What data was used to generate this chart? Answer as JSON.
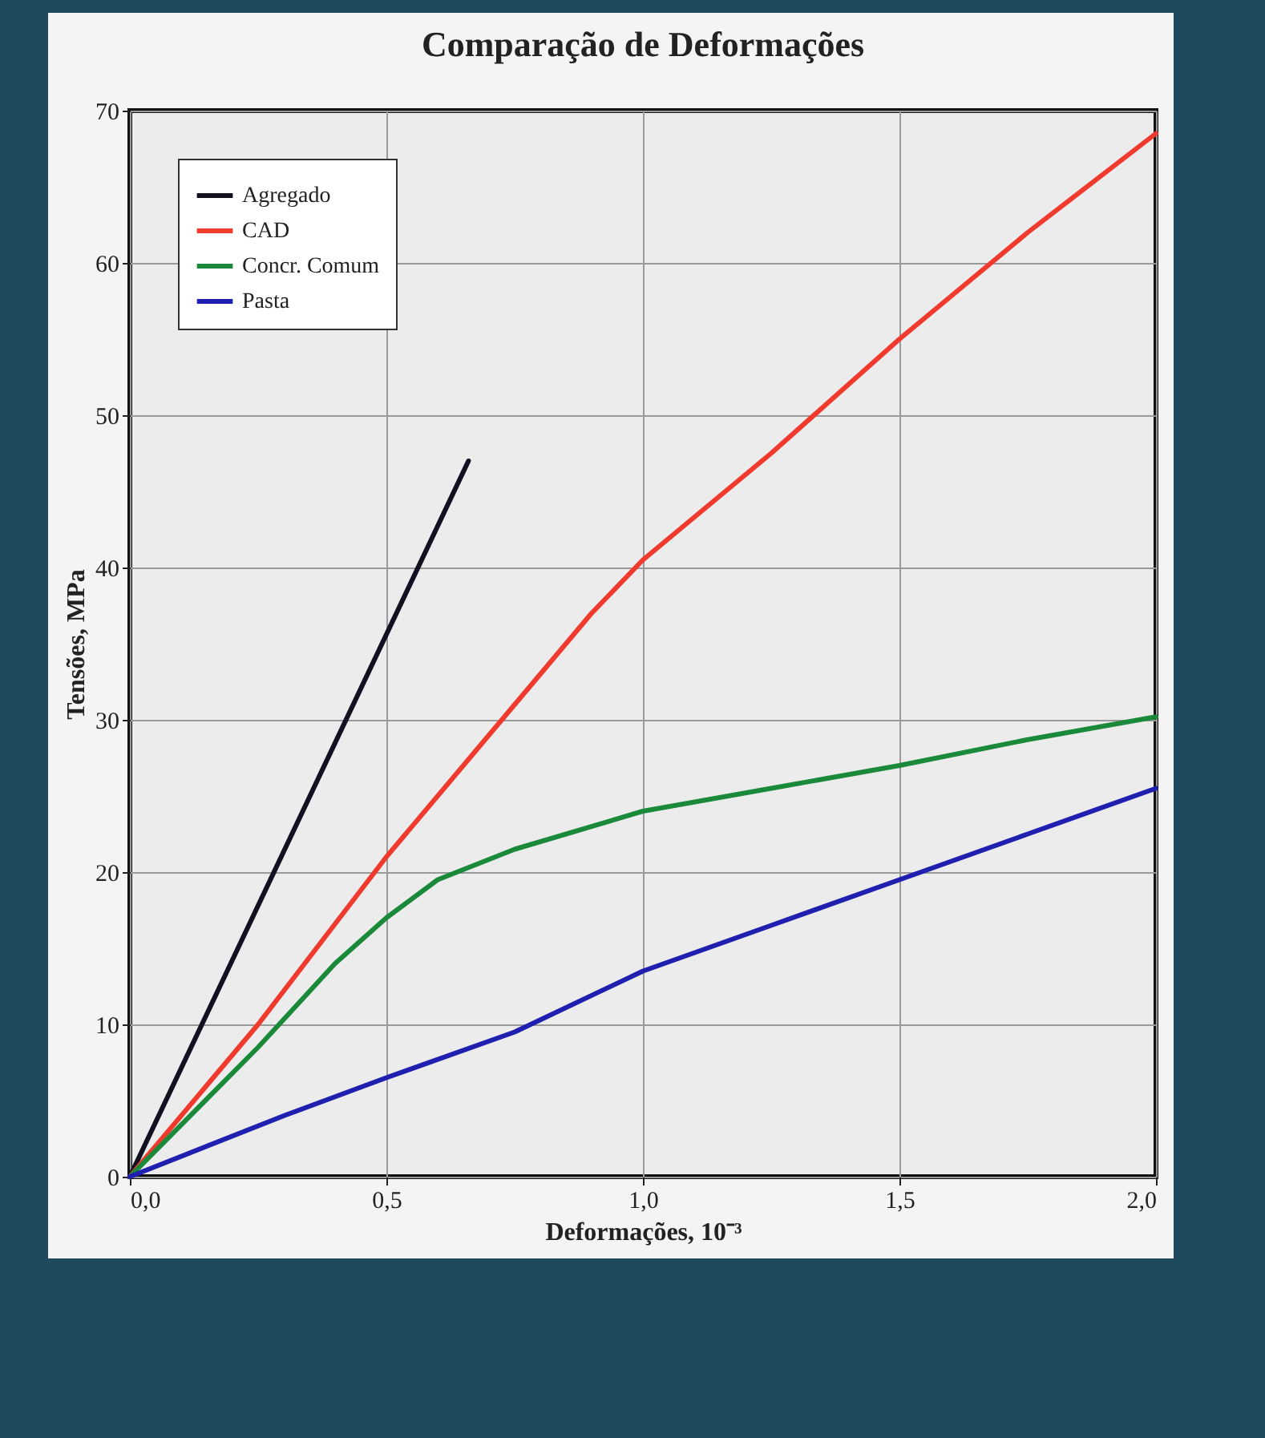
{
  "chart_data": {
    "type": "line",
    "title": "Comparação de Deformações",
    "xlabel": "Deformações, 10⁻³",
    "ylabel": "Tensões, MPa",
    "xlim": [
      0,
      2
    ],
    "xticks": [
      {
        "value": 0,
        "label": "0,0"
      },
      {
        "value": 0.5,
        "label": "0,5"
      },
      {
        "value": 1,
        "label": "1,0"
      },
      {
        "value": 1.5,
        "label": "1,5"
      },
      {
        "value": 2,
        "label": "2,0"
      }
    ],
    "ylim": [
      0,
      70
    ],
    "yticks": [
      0,
      10,
      20,
      30,
      40,
      50,
      60,
      70
    ],
    "grid": true,
    "legend": "top left",
    "series": [
      {
        "name": "Agregado",
        "color": "#111122",
        "x": [
          0,
          0.66
        ],
        "values": [
          0,
          47
        ]
      },
      {
        "name": "CAD",
        "color": "#f03a2e",
        "x": [
          0,
          0.25,
          0.5,
          0.75,
          0.9,
          1.0,
          1.25,
          1.5,
          1.75,
          2.0
        ],
        "values": [
          0,
          10,
          21,
          31,
          37,
          40.5,
          47.5,
          55,
          62,
          68.5
        ]
      },
      {
        "name": "Concr. Comum",
        "color": "#1a8a3a",
        "x": [
          0,
          0.25,
          0.4,
          0.5,
          0.6,
          0.75,
          1.0,
          1.25,
          1.5,
          1.75,
          2.0
        ],
        "values": [
          0,
          8.5,
          14,
          17,
          19.5,
          21.5,
          24,
          25.5,
          27,
          28.7,
          30.2
        ]
      },
      {
        "name": "Pasta",
        "color": "#2020b0",
        "x": [
          0,
          0.3,
          0.5,
          0.75,
          1.0,
          1.25,
          1.5,
          1.75,
          2.0
        ],
        "values": [
          0,
          4,
          6.5,
          9.5,
          13.5,
          16.5,
          19.5,
          22.5,
          25.5
        ]
      }
    ]
  }
}
